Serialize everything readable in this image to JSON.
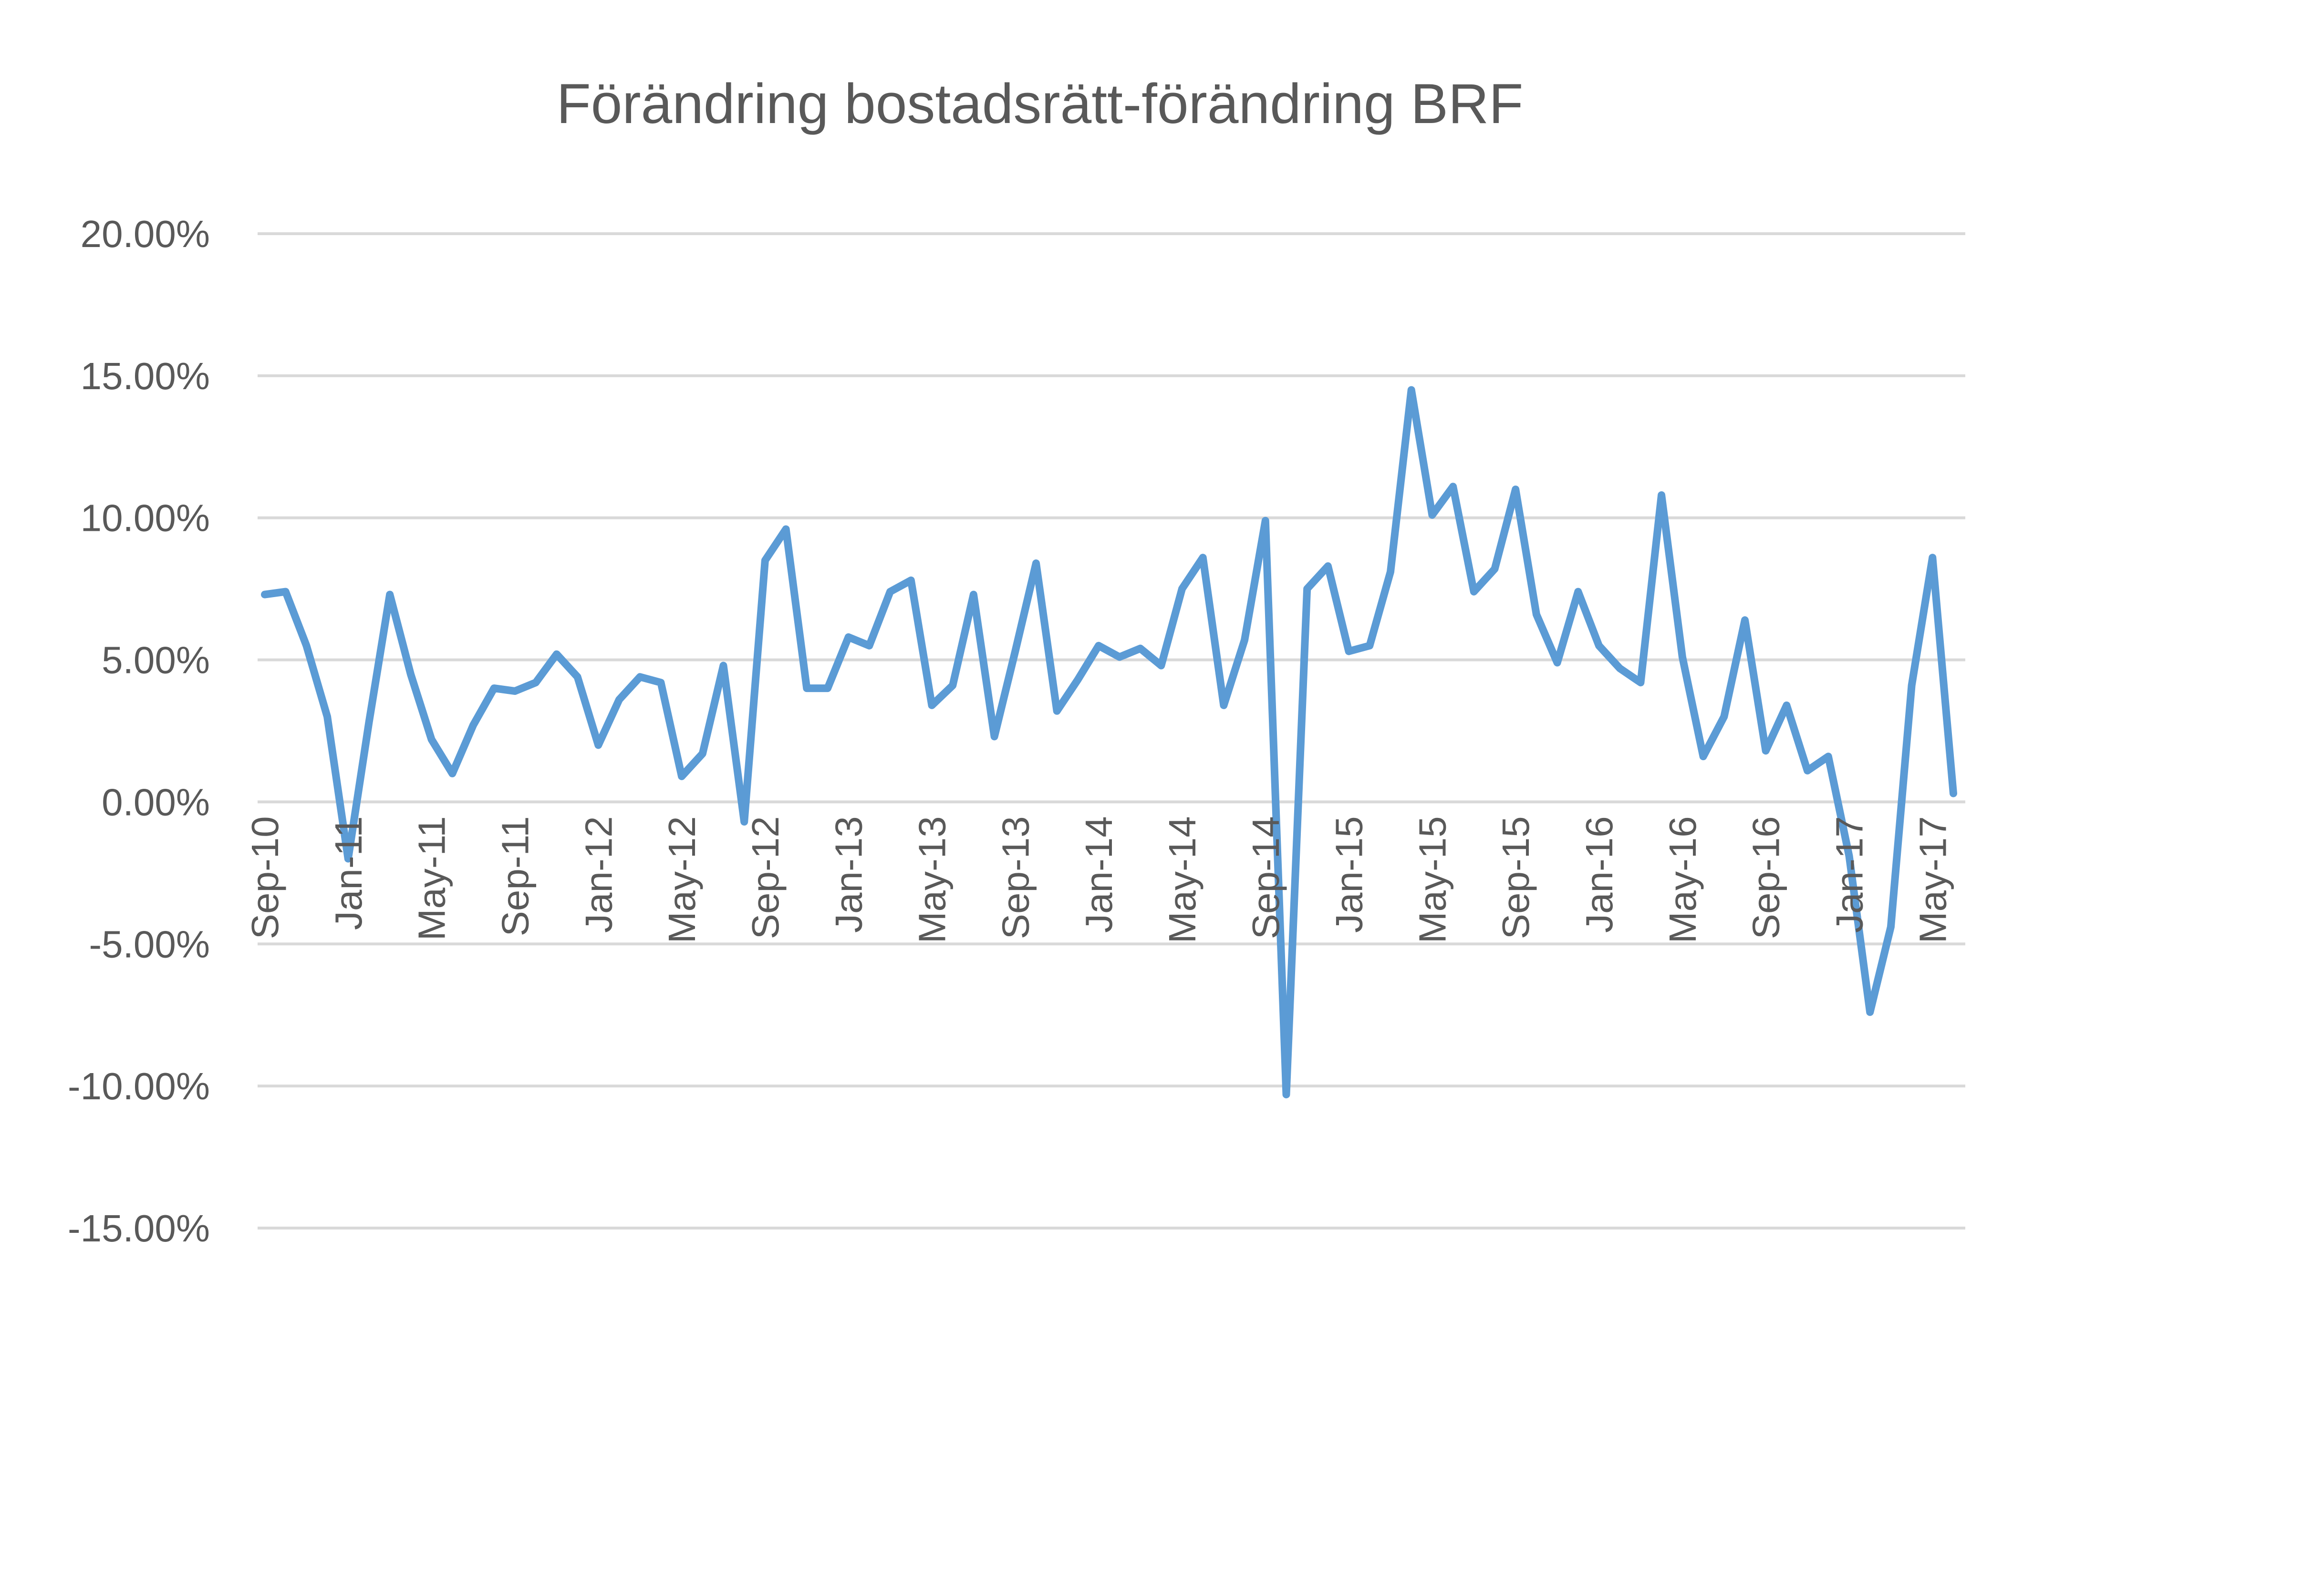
{
  "chart_data": {
    "type": "line",
    "title": "Förändring bostadsrätt-förändring BRF",
    "xlabel": "",
    "ylabel": "",
    "ylim": [
      -15,
      20
    ],
    "y_ticks": [
      20,
      15,
      10,
      5,
      0,
      -5,
      -10,
      -15
    ],
    "y_tick_labels": [
      "20.00%",
      "15.00%",
      "10.00%",
      "5.00%",
      "0.00%",
      "-5.00%",
      "-10.00%",
      "-15.00%"
    ],
    "x_tick_labels": [
      "Sep-10",
      "Jan-11",
      "May-11",
      "Sep-11",
      "Jan-12",
      "May-12",
      "Sep-12",
      "Jan-13",
      "May-13",
      "Sep-13",
      "Jan-14",
      "May-14",
      "Sep-14",
      "Jan-15",
      "May-15",
      "Sep-15",
      "Jan-16",
      "May-16",
      "Sep-16",
      "Jan-17",
      "May-17"
    ],
    "x_start": "Sep-10",
    "grid": true,
    "legend": "none",
    "line_color": "#5b9bd5",
    "series": [
      {
        "values": [
          7.3,
          7.4,
          5.5,
          3.0,
          -2.0,
          2.8,
          7.3,
          4.5,
          2.2,
          1.0,
          2.7,
          4.0,
          3.9,
          4.2,
          5.2,
          4.4,
          2.0,
          3.6,
          4.4,
          4.2,
          0.9,
          1.7,
          4.8,
          -0.7,
          8.5,
          9.6,
          4.0,
          4.0,
          5.8,
          5.5,
          7.4,
          7.8,
          3.4,
          4.1,
          7.3,
          2.3,
          5.3,
          8.4,
          3.2,
          4.3,
          5.5,
          5.1,
          5.4,
          4.8,
          7.5,
          8.6,
          3.4,
          5.7,
          9.9,
          -10.3,
          7.5,
          8.3,
          5.3,
          5.5,
          8.1,
          14.5,
          10.1,
          11.1,
          7.4,
          8.2,
          11.0,
          6.6,
          4.9,
          7.4,
          5.5,
          4.7,
          4.2,
          10.8,
          5.1,
          1.6,
          3.0,
          6.4,
          1.8,
          3.4,
          1.1,
          1.6,
          -1.9,
          -7.4,
          -4.4,
          4.1,
          8.6,
          0.3
        ]
      }
    ]
  }
}
